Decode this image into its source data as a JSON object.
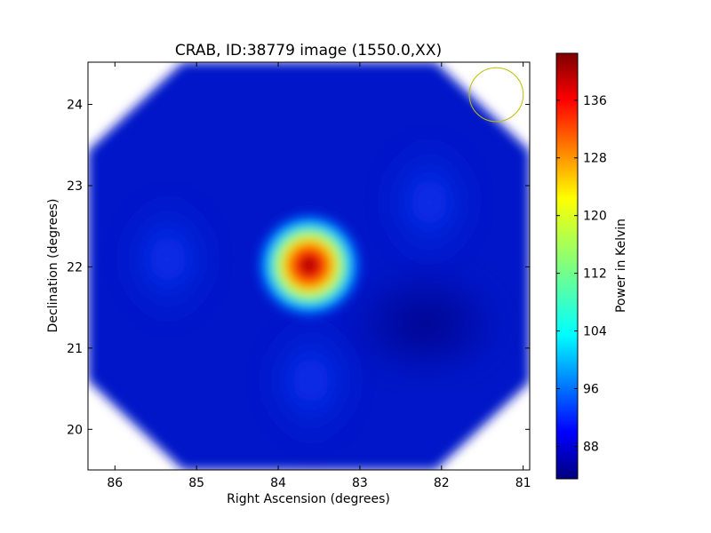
{
  "chart_data": {
    "type": "heatmap",
    "title": "CRAB, ID:38779 image (1550.0,XX)",
    "xlabel": "Right Ascension (degrees)",
    "ylabel": "Declination (degrees)",
    "xlim": [
      86.33,
      80.92
    ],
    "ylim": [
      19.5,
      24.52
    ],
    "x_ticks": [
      86,
      85,
      84,
      83,
      82,
      81
    ],
    "y_ticks": [
      20,
      21,
      22,
      23,
      24
    ],
    "grid": false,
    "colormap": "jet",
    "colorbar": {
      "label": "Power in Kelvin",
      "min": 83.5,
      "max": 142.5,
      "ticks": [
        88,
        96,
        104,
        112,
        120,
        128,
        136
      ]
    },
    "background_level": 88,
    "sources": [
      {
        "ra": 83.62,
        "dec": 22.02,
        "peak": 142,
        "sigma_deg": 0.28
      }
    ],
    "diffuse_features": [
      {
        "ra": 85.35,
        "dec": 22.1,
        "level": 91
      },
      {
        "ra": 82.15,
        "dec": 22.8,
        "level": 91
      },
      {
        "ra": 83.6,
        "dec": 20.6,
        "level": 90
      }
    ],
    "beam_circle": {
      "ra": 81.33,
      "dec": 24.12,
      "radius_deg": 0.33,
      "color": "#bfbf00"
    },
    "footprint": "octagon"
  }
}
